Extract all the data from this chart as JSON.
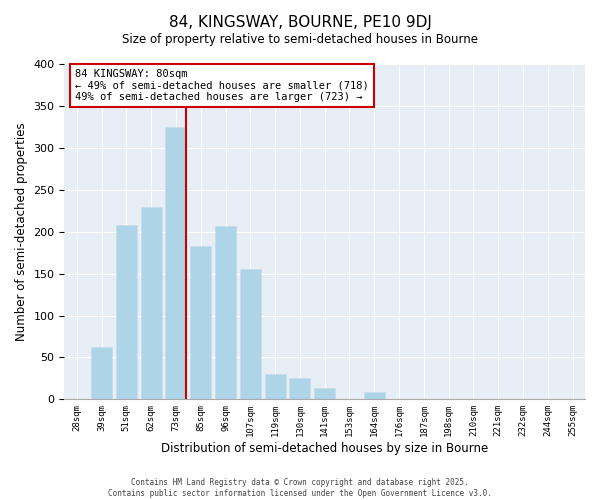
{
  "title": "84, KINGSWAY, BOURNE, PE10 9DJ",
  "subtitle": "Size of property relative to semi-detached houses in Bourne",
  "xlabel": "Distribution of semi-detached houses by size in Bourne",
  "ylabel": "Number of semi-detached properties",
  "bin_labels": [
    "28sqm",
    "39sqm",
    "51sqm",
    "62sqm",
    "73sqm",
    "85sqm",
    "96sqm",
    "107sqm",
    "119sqm",
    "130sqm",
    "141sqm",
    "153sqm",
    "164sqm",
    "176sqm",
    "187sqm",
    "198sqm",
    "210sqm",
    "221sqm",
    "232sqm",
    "244sqm",
    "255sqm"
  ],
  "bar_values": [
    0,
    62,
    208,
    230,
    325,
    183,
    207,
    155,
    30,
    25,
    14,
    0,
    9,
    0,
    0,
    0,
    0,
    0,
    0,
    0,
    0
  ],
  "bar_color": "#aed4e8",
  "bar_edge_color": "#c8dce8",
  "property_bin_index": 4,
  "vline_color": "#cc0000",
  "annotation_title": "84 KINGSWAY: 80sqm",
  "annotation_line1": "← 49% of semi-detached houses are smaller (718)",
  "annotation_line2": "49% of semi-detached houses are larger (723) →",
  "ylim": [
    0,
    400
  ],
  "yticks": [
    0,
    50,
    100,
    150,
    200,
    250,
    300,
    350,
    400
  ],
  "footnote1": "Contains HM Land Registry data © Crown copyright and database right 2025.",
  "footnote2": "Contains public sector information licensed under the Open Government Licence v3.0.",
  "bg_color": "#e8eef5"
}
